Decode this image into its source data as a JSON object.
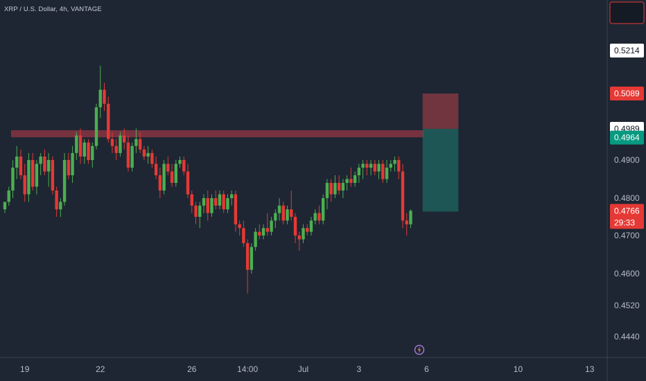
{
  "header": {
    "title": "XRP / U.S. Dollar, 4h, VANTAGE"
  },
  "colors": {
    "background": "#1e2633",
    "up": "#4caf50",
    "down": "#e53935",
    "zone": "#b33a4a",
    "stop": "#a64048",
    "target": "#1d6b62",
    "axis_text": "#b7bcc6"
  },
  "chart_data": {
    "type": "candlestick",
    "symbol": "XRP / U.S. Dollar",
    "interval": "4h",
    "broker": "VANTAGE",
    "y_ticks": [
      "0.4440",
      "0.4520",
      "0.4600",
      "0.4700",
      "0.4800",
      "0.4900"
    ],
    "x_ticks": [
      {
        "label": "19",
        "i": 5
      },
      {
        "label": "22",
        "i": 24
      },
      {
        "label": "26",
        "i": 47
      },
      {
        "label": "14:00",
        "i": 61
      },
      {
        "label": "Jul",
        "i": 75
      },
      {
        "label": "3",
        "i": 89
      },
      {
        "label": "6",
        "i": 106
      },
      {
        "label": "10",
        "i": 129
      },
      {
        "label": "13",
        "i": 147
      }
    ],
    "price_tags": [
      {
        "value": "0.5214",
        "style": "light"
      },
      {
        "value": "0.5089",
        "style": "red"
      },
      {
        "value": "0.4989",
        "style": "light"
      },
      {
        "value": "0.4964",
        "style": "green"
      },
      {
        "value": "0.4766",
        "style": "red",
        "countdown": "29:33"
      }
    ],
    "resistance_zone": {
      "from": 0.4965,
      "to": 0.4985
    },
    "position": {
      "entry": 0.4989,
      "stop": 0.5089,
      "target": 0.4764,
      "start_i": 105,
      "end_i": 114
    },
    "candles": [
      [
        0.477,
        0.479,
        0.476,
        0.479
      ],
      [
        0.479,
        0.483,
        0.478,
        0.482
      ],
      [
        0.482,
        0.49,
        0.48,
        0.488
      ],
      [
        0.488,
        0.494,
        0.485,
        0.491
      ],
      [
        0.491,
        0.493,
        0.485,
        0.486
      ],
      [
        0.486,
        0.489,
        0.479,
        0.481
      ],
      [
        0.481,
        0.492,
        0.479,
        0.49
      ],
      [
        0.49,
        0.492,
        0.482,
        0.483
      ],
      [
        0.483,
        0.49,
        0.481,
        0.489
      ],
      [
        0.489,
        0.492,
        0.486,
        0.491
      ],
      [
        0.491,
        0.493,
        0.486,
        0.487
      ],
      [
        0.487,
        0.492,
        0.483,
        0.49
      ],
      [
        0.49,
        0.491,
        0.481,
        0.482
      ],
      [
        0.482,
        0.483,
        0.475,
        0.477
      ],
      [
        0.477,
        0.48,
        0.475,
        0.479
      ],
      [
        0.479,
        0.492,
        0.478,
        0.49
      ],
      [
        0.49,
        0.492,
        0.485,
        0.486
      ],
      [
        0.486,
        0.494,
        0.484,
        0.492
      ],
      [
        0.492,
        0.498,
        0.49,
        0.497
      ],
      [
        0.497,
        0.499,
        0.489,
        0.491
      ],
      [
        0.491,
        0.496,
        0.489,
        0.495
      ],
      [
        0.495,
        0.496,
        0.489,
        0.49
      ],
      [
        0.49,
        0.495,
        0.488,
        0.494
      ],
      [
        0.494,
        0.506,
        0.493,
        0.505
      ],
      [
        0.505,
        0.517,
        0.502,
        0.51
      ],
      [
        0.51,
        0.512,
        0.504,
        0.506
      ],
      [
        0.506,
        0.508,
        0.495,
        0.496
      ],
      [
        0.496,
        0.498,
        0.492,
        0.494
      ],
      [
        0.494,
        0.496,
        0.49,
        0.492
      ],
      [
        0.492,
        0.498,
        0.491,
        0.497
      ],
      [
        0.497,
        0.499,
        0.493,
        0.495
      ],
      [
        0.495,
        0.497,
        0.487,
        0.488
      ],
      [
        0.488,
        0.495,
        0.487,
        0.494
      ],
      [
        0.494,
        0.499,
        0.492,
        0.496
      ],
      [
        0.496,
        0.498,
        0.492,
        0.493
      ],
      [
        0.493,
        0.494,
        0.49,
        0.491
      ],
      [
        0.491,
        0.494,
        0.489,
        0.492
      ],
      [
        0.492,
        0.493,
        0.488,
        0.489
      ],
      [
        0.489,
        0.491,
        0.485,
        0.486
      ],
      [
        0.486,
        0.488,
        0.48,
        0.482
      ],
      [
        0.482,
        0.49,
        0.481,
        0.489
      ],
      [
        0.489,
        0.491,
        0.486,
        0.487
      ],
      [
        0.487,
        0.489,
        0.483,
        0.484
      ],
      [
        0.484,
        0.49,
        0.483,
        0.489
      ],
      [
        0.489,
        0.491,
        0.488,
        0.49
      ],
      [
        0.49,
        0.491,
        0.486,
        0.487
      ],
      [
        0.487,
        0.489,
        0.48,
        0.481
      ],
      [
        0.481,
        0.482,
        0.476,
        0.478
      ],
      [
        0.478,
        0.479,
        0.473,
        0.475
      ],
      [
        0.475,
        0.479,
        0.472,
        0.478
      ],
      [
        0.478,
        0.481,
        0.476,
        0.48
      ],
      [
        0.48,
        0.482,
        0.474,
        0.476
      ],
      [
        0.476,
        0.481,
        0.475,
        0.48
      ],
      [
        0.48,
        0.482,
        0.477,
        0.478
      ],
      [
        0.478,
        0.482,
        0.477,
        0.481
      ],
      [
        0.481,
        0.482,
        0.476,
        0.477
      ],
      [
        0.477,
        0.481,
        0.476,
        0.48
      ],
      [
        0.48,
        0.482,
        0.478,
        0.481
      ],
      [
        0.481,
        0.482,
        0.471,
        0.473
      ],
      [
        0.473,
        0.474,
        0.47,
        0.472
      ],
      [
        0.472,
        0.474,
        0.467,
        0.468
      ],
      [
        0.468,
        0.469,
        0.455,
        0.461
      ],
      [
        0.461,
        0.468,
        0.46,
        0.467
      ],
      [
        0.467,
        0.472,
        0.466,
        0.471
      ],
      [
        0.471,
        0.473,
        0.469,
        0.47
      ],
      [
        0.47,
        0.473,
        0.469,
        0.472
      ],
      [
        0.472,
        0.476,
        0.47,
        0.471
      ],
      [
        0.471,
        0.475,
        0.47,
        0.474
      ],
      [
        0.474,
        0.477,
        0.472,
        0.476
      ],
      [
        0.476,
        0.48,
        0.474,
        0.478
      ],
      [
        0.478,
        0.479,
        0.473,
        0.474
      ],
      [
        0.474,
        0.478,
        0.473,
        0.477
      ],
      [
        0.477,
        0.482,
        0.474,
        0.475
      ],
      [
        0.475,
        0.476,
        0.468,
        0.47
      ],
      [
        0.47,
        0.471,
        0.466,
        0.469
      ],
      [
        0.469,
        0.473,
        0.468,
        0.472
      ],
      [
        0.472,
        0.473,
        0.47,
        0.471
      ],
      [
        0.471,
        0.475,
        0.47,
        0.474
      ],
      [
        0.474,
        0.477,
        0.473,
        0.476
      ],
      [
        0.476,
        0.478,
        0.473,
        0.474
      ],
      [
        0.474,
        0.481,
        0.473,
        0.48
      ],
      [
        0.48,
        0.485,
        0.477,
        0.484
      ],
      [
        0.484,
        0.485,
        0.479,
        0.481
      ],
      [
        0.481,
        0.486,
        0.48,
        0.484
      ],
      [
        0.484,
        0.486,
        0.481,
        0.482
      ],
      [
        0.482,
        0.485,
        0.48,
        0.484
      ],
      [
        0.484,
        0.486,
        0.482,
        0.485
      ],
      [
        0.485,
        0.488,
        0.483,
        0.484
      ],
      [
        0.484,
        0.487,
        0.483,
        0.486
      ],
      [
        0.486,
        0.489,
        0.484,
        0.488
      ],
      [
        0.488,
        0.49,
        0.485,
        0.489
      ],
      [
        0.489,
        0.49,
        0.486,
        0.488
      ],
      [
        0.488,
        0.49,
        0.486,
        0.489
      ],
      [
        0.489,
        0.49,
        0.486,
        0.487
      ],
      [
        0.487,
        0.49,
        0.485,
        0.489
      ],
      [
        0.489,
        0.49,
        0.484,
        0.485
      ],
      [
        0.485,
        0.49,
        0.484,
        0.488
      ],
      [
        0.488,
        0.49,
        0.487,
        0.489
      ],
      [
        0.489,
        0.491,
        0.487,
        0.49
      ],
      [
        0.49,
        0.491,
        0.485,
        0.487
      ],
      [
        0.487,
        0.489,
        0.472,
        0.474
      ],
      [
        0.474,
        0.476,
        0.47,
        0.473
      ],
      [
        0.473,
        0.477,
        0.472,
        0.4766
      ]
    ]
  }
}
